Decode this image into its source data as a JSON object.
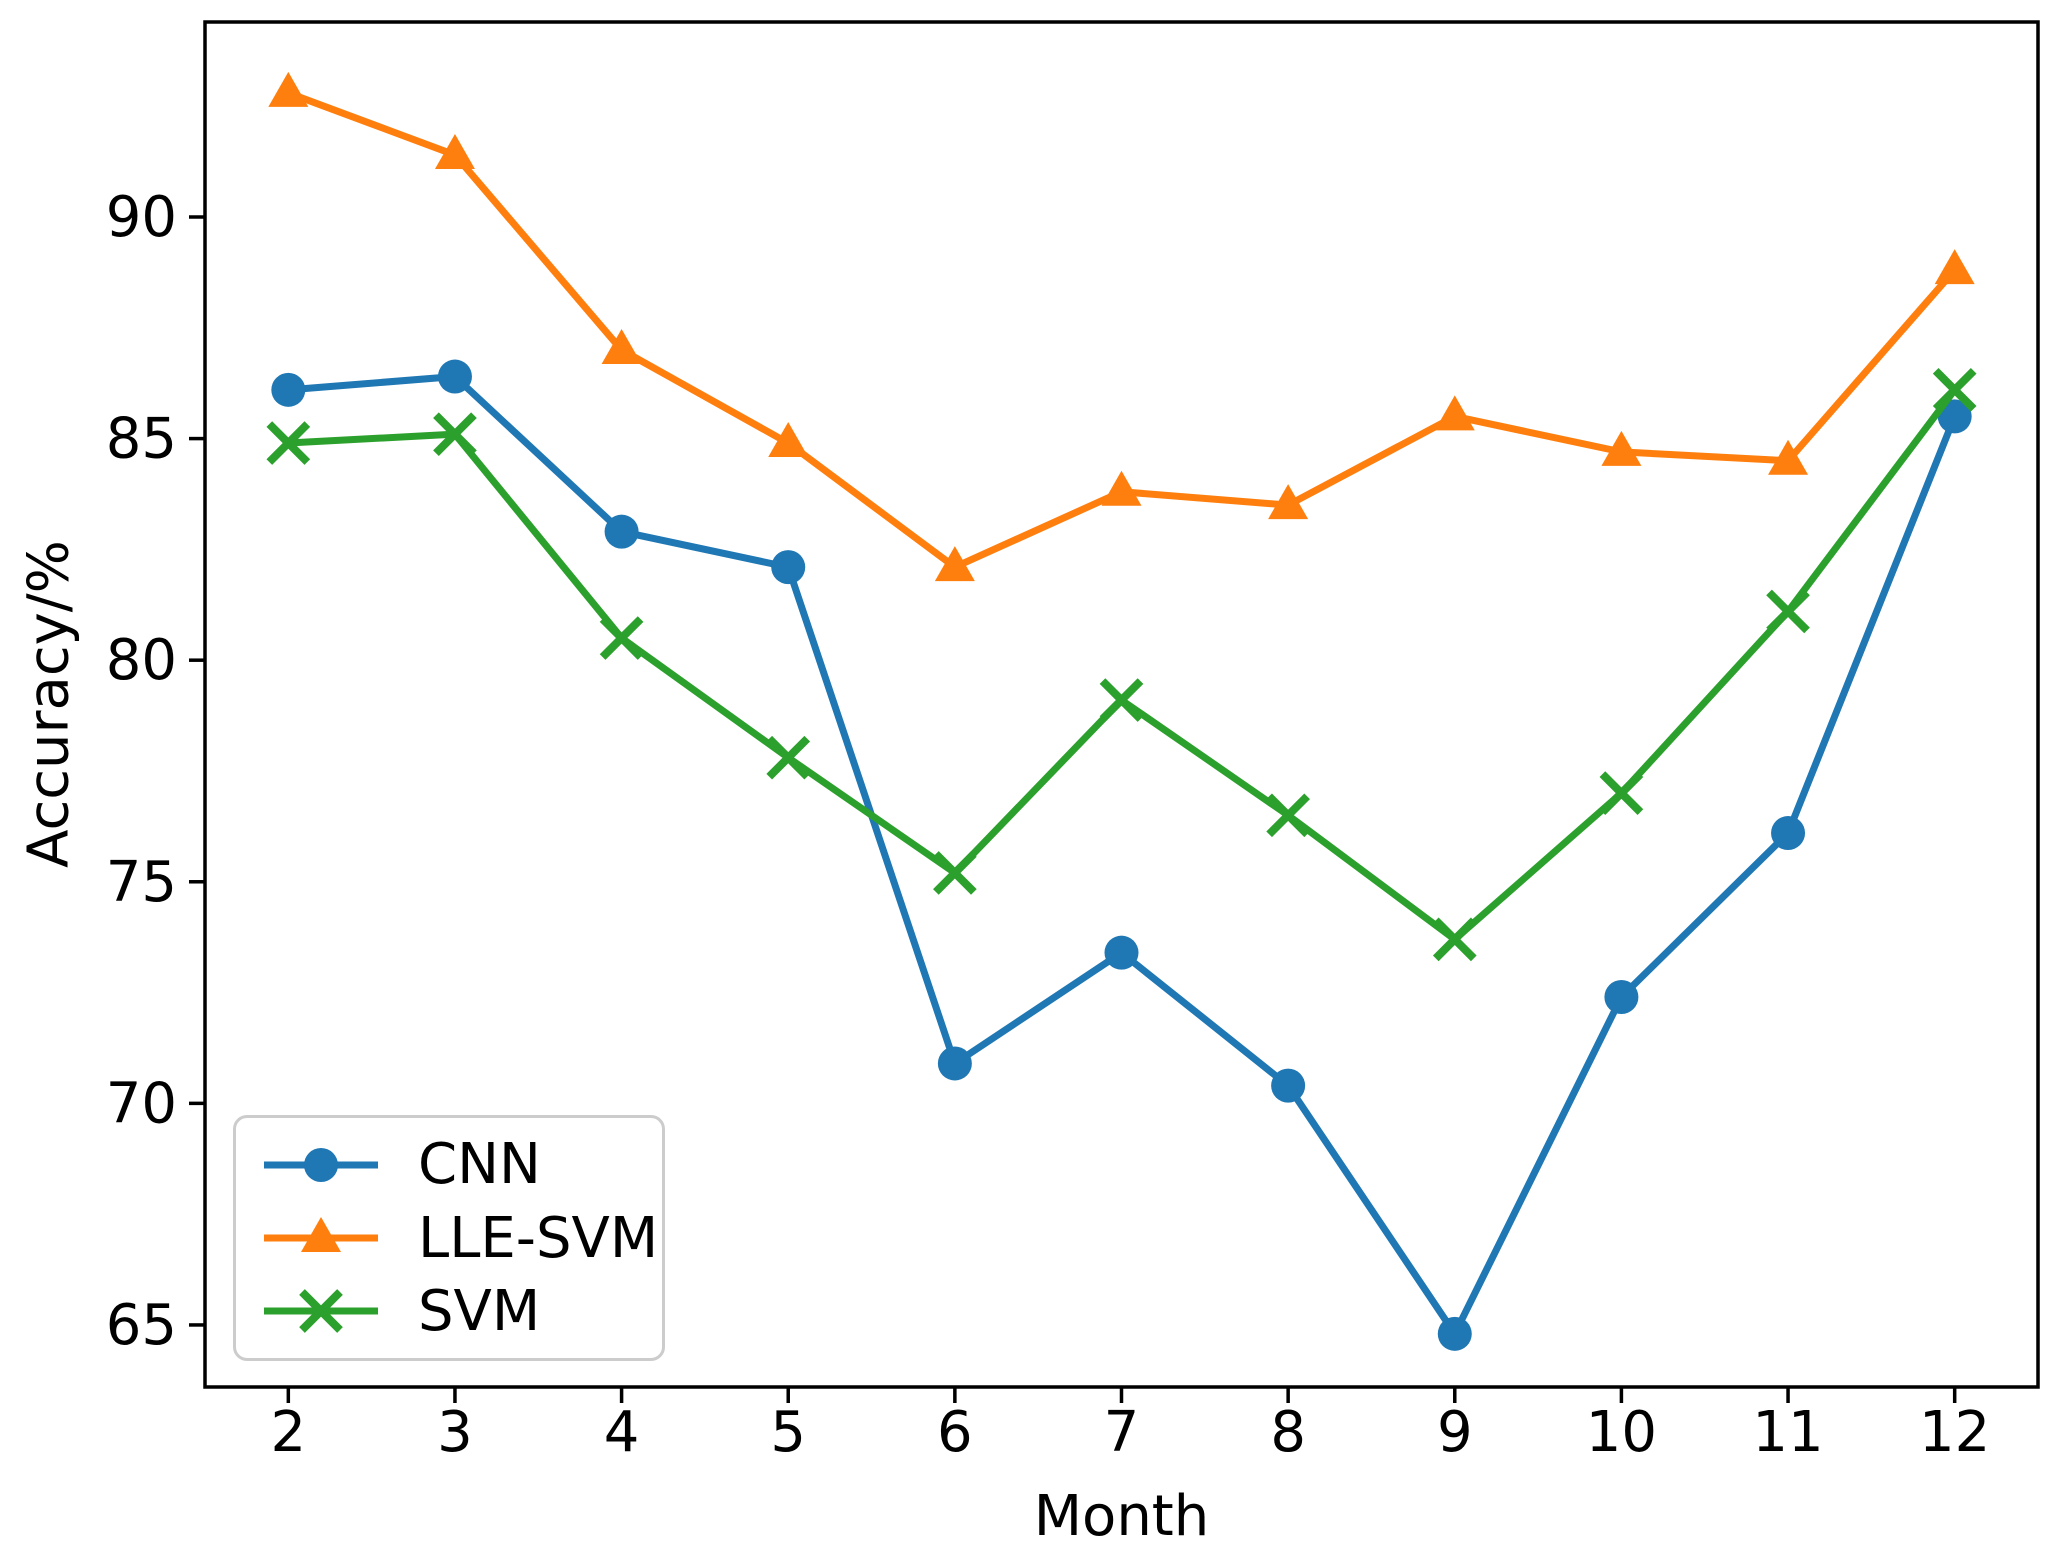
{
  "figure": {
    "background": "#ffffff",
    "text_color": "#000000"
  },
  "chart_data": {
    "type": "line",
    "title": "",
    "xlabel": "Month",
    "ylabel": "Accuracy/%",
    "x": [
      2,
      3,
      4,
      5,
      6,
      7,
      8,
      9,
      10,
      11,
      12
    ],
    "xticks": [
      "2",
      "3",
      "4",
      "5",
      "6",
      "7",
      "8",
      "9",
      "10",
      "11",
      "12"
    ],
    "yticks": [
      "65",
      "70",
      "75",
      "80",
      "85",
      "90"
    ],
    "ytick_values": [
      65,
      70,
      75,
      80,
      85,
      90
    ],
    "xlim": [
      1.5,
      12.5
    ],
    "ylim": [
      63.6,
      94.4
    ],
    "grid": false,
    "legend": {
      "position": "lower-left",
      "border_color": "#cccccc"
    },
    "series": [
      {
        "name": "CNN",
        "color": "#1f77b4",
        "marker": "circle",
        "values": [
          86.1,
          86.4,
          82.9,
          82.1,
          70.9,
          73.4,
          70.4,
          64.8,
          72.4,
          76.1,
          85.5
        ]
      },
      {
        "name": "LLE-SVM",
        "color": "#ff7f0e",
        "marker": "triangle",
        "values": [
          92.8,
          91.4,
          87.0,
          84.9,
          82.1,
          83.8,
          83.5,
          85.5,
          84.7,
          84.5,
          88.8
        ]
      },
      {
        "name": "SVM",
        "color": "#2ca02c",
        "marker": "x",
        "values": [
          84.9,
          85.1,
          80.5,
          77.8,
          75.2,
          79.1,
          76.5,
          73.7,
          77.0,
          81.1,
          86.1
        ]
      }
    ]
  }
}
